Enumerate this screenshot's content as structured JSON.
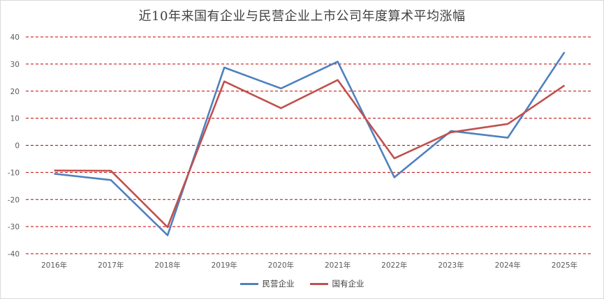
{
  "chart_data": {
    "type": "line",
    "title": "近10年来国有企业与民营企业上市公司年度算术平均涨幅",
    "xlabel": "",
    "ylabel": "",
    "categories": [
      "2016年",
      "2017年",
      "2018年",
      "2019年",
      "2020年",
      "2021年",
      "2022年",
      "2023年",
      "2024年",
      "2025年"
    ],
    "ylim": [
      -40,
      40
    ],
    "yticks": [
      40,
      30,
      20,
      10,
      0,
      -10,
      -20,
      -30,
      -40
    ],
    "grid": "horizontal dashed",
    "legend_position": "bottom",
    "series": [
      {
        "name": "民营企业",
        "color": "#4f81bd",
        "values": [
          -10.5,
          -12.8,
          -33.2,
          28.7,
          21.0,
          30.9,
          -11.8,
          5.3,
          2.8,
          34.4
        ]
      },
      {
        "name": "国有企业",
        "color": "#c0504d",
        "values": [
          -9.3,
          -9.4,
          -30.2,
          23.6,
          13.7,
          24.1,
          -4.8,
          4.8,
          7.9,
          22.1
        ]
      }
    ],
    "gridline_color": "#c00000"
  }
}
